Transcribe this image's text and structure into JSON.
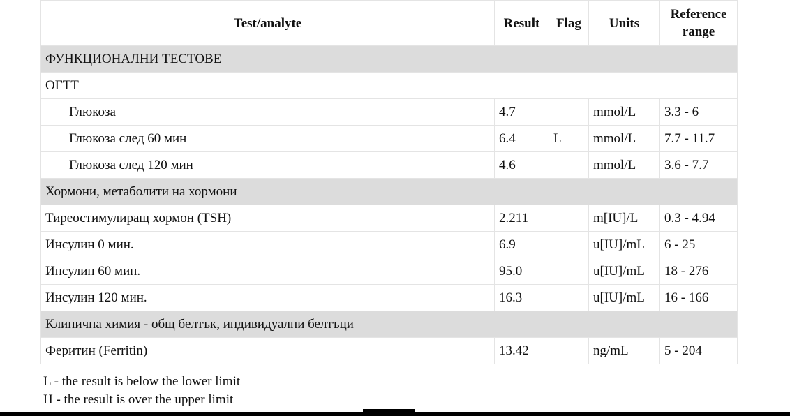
{
  "headers": {
    "test": "Test/analyte",
    "result": "Result",
    "flag": "Flag",
    "units": "Units",
    "range": "Reference range"
  },
  "rows": [
    {
      "type": "section",
      "test": "ФУНКЦИОНАЛНИ ТЕСТОВЕ"
    },
    {
      "type": "group",
      "test": "ОГТТ"
    },
    {
      "type": "item",
      "indent": true,
      "test": "Глюкоза",
      "result": "4.7",
      "flag": "",
      "units": "mmol/L",
      "range": "3.3 - 6"
    },
    {
      "type": "item",
      "indent": true,
      "test": "Глюкоза след 60 мин",
      "result": "6.4",
      "flag": "L",
      "units": "mmol/L",
      "range": "7.7 - 11.7"
    },
    {
      "type": "item",
      "indent": true,
      "test": "Глюкоза след 120 мин",
      "result": "4.6",
      "flag": "",
      "units": "mmol/L",
      "range": "3.6 - 7.7"
    },
    {
      "type": "section",
      "test": "Хормони, метаболити на хормони"
    },
    {
      "type": "item",
      "test": "Тиреостимулиращ хормон (TSH)",
      "result": "2.211",
      "flag": "",
      "units": "m[IU]/L",
      "range": "0.3 - 4.94"
    },
    {
      "type": "item",
      "test": "Инсулин 0 мин.",
      "result": "6.9",
      "flag": "",
      "units": "u[IU]/mL",
      "range": "6 - 25"
    },
    {
      "type": "item",
      "test": "Инсулин 60 мин.",
      "result": "95.0",
      "flag": "",
      "units": "u[IU]/mL",
      "range": "18 - 276"
    },
    {
      "type": "item",
      "test": "Инсулин 120 мин.",
      "result": "16.3",
      "flag": "",
      "units": "u[IU]/mL",
      "range": "16 - 166"
    },
    {
      "type": "section",
      "test": "Клинична химия - общ белтък, индивидуални белтъци"
    },
    {
      "type": "item",
      "test": "Феритин (Ferritin)",
      "result": "13.42",
      "flag": "",
      "units": "ng/mL",
      "range": "5 - 204"
    }
  ],
  "legend": [
    "L - the result is below the lower limit",
    "H - the result is over the upper limit"
  ]
}
